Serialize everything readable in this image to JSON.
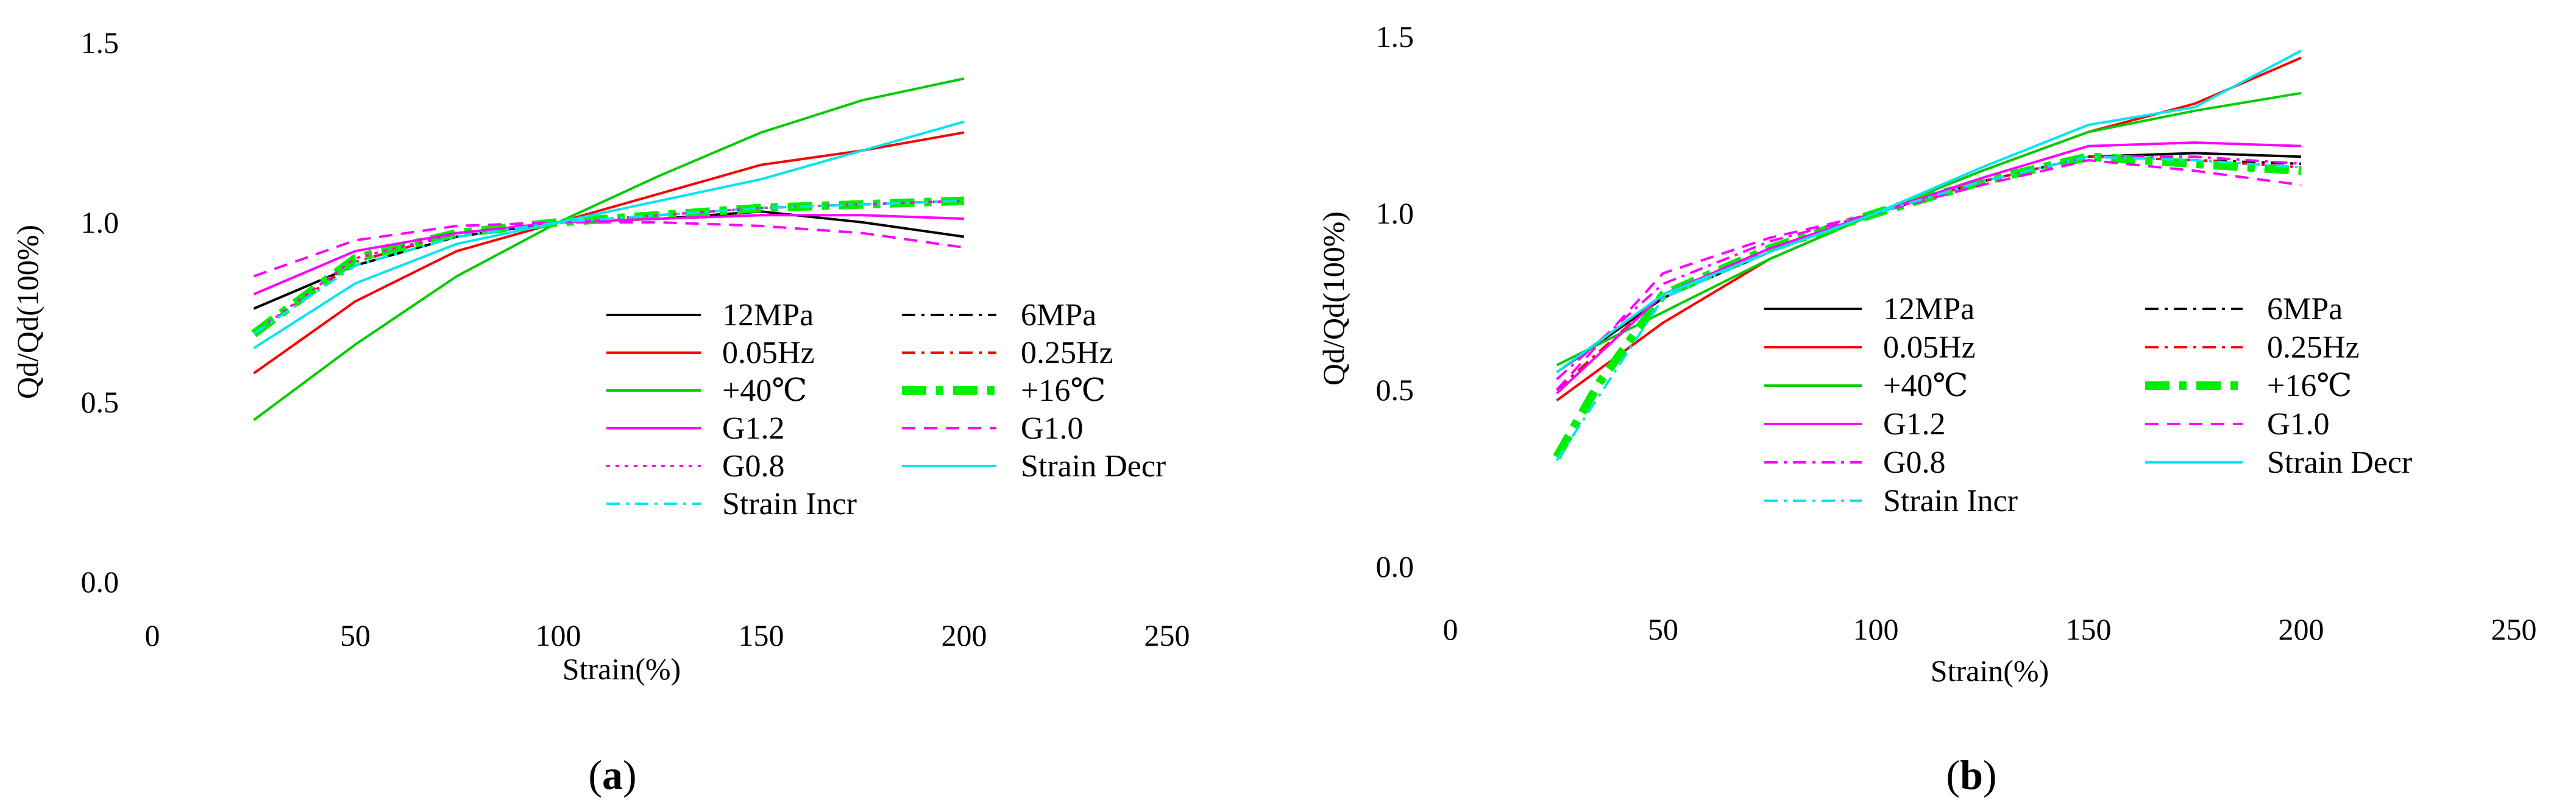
{
  "colors": {
    "black": "#000000",
    "red": "#ff0000",
    "green": "#00cc00",
    "magenta": "#ff00ff",
    "cyan": "#00e5ee"
  },
  "chart_data": [
    {
      "type": "line",
      "panel_label": "a",
      "xlabel": "Strain(%)",
      "ylabel": "Qd/Qd(100%)",
      "xlim": [
        0,
        250
      ],
      "ylim": [
        0,
        1.5
      ],
      "xticks": [
        "0",
        "50",
        "100",
        "150",
        "200",
        "250"
      ],
      "yticks": [
        "0.0",
        "0.5",
        "1.0",
        "1.5"
      ],
      "grid": false,
      "legend_position": "center-right",
      "series": [
        {
          "name": "12MPa",
          "color": "#000000",
          "dash": "solid",
          "width": 4,
          "x": [
            25,
            50,
            75,
            100,
            125,
            150,
            175,
            200
          ],
          "y": [
            0.76,
            0.88,
            0.96,
            1.0,
            1.01,
            1.03,
            1.0,
            0.96
          ]
        },
        {
          "name": "6MPa",
          "color": "#000000",
          "dash": "dashdot",
          "width": 4,
          "x": [
            25,
            50,
            75,
            100,
            125,
            150,
            175,
            200
          ],
          "y": [
            0.69,
            0.88,
            0.96,
            1.0,
            1.02,
            1.04,
            1.05,
            1.06
          ]
        },
        {
          "name": "0.05Hz",
          "color": "#ff0000",
          "dash": "solid",
          "width": 4,
          "x": [
            25,
            50,
            75,
            100,
            125,
            150,
            175,
            200
          ],
          "y": [
            0.58,
            0.78,
            0.92,
            1.0,
            1.08,
            1.16,
            1.2,
            1.25
          ]
        },
        {
          "name": "0.25Hz",
          "color": "#ff0000",
          "dash": "dashdot",
          "width": 4,
          "x": [
            25,
            50,
            75,
            100,
            125,
            150,
            175,
            200
          ],
          "y": [
            0.69,
            0.89,
            0.97,
            1.0,
            1.02,
            1.04,
            1.05,
            1.06
          ]
        },
        {
          "name": "+40℃",
          "color": "#00cc00",
          "dash": "solid",
          "width": 4,
          "x": [
            25,
            50,
            75,
            100,
            125,
            150,
            175,
            200
          ],
          "y": [
            0.45,
            0.66,
            0.85,
            1.0,
            1.13,
            1.25,
            1.34,
            1.4
          ]
        },
        {
          "name": "+16℃",
          "color": "#00ee00",
          "dash": "bigdash",
          "width": 14,
          "x": [
            25,
            50,
            75,
            100,
            125,
            150,
            175,
            200
          ],
          "y": [
            0.69,
            0.9,
            0.97,
            1.0,
            1.02,
            1.04,
            1.05,
            1.06
          ]
        },
        {
          "name": "G1.2",
          "color": "#ff00ff",
          "dash": "solid",
          "width": 4,
          "x": [
            25,
            50,
            75,
            100,
            125,
            150,
            175,
            200
          ],
          "y": [
            0.8,
            0.92,
            0.97,
            1.0,
            1.01,
            1.02,
            1.02,
            1.01
          ]
        },
        {
          "name": "G1.0",
          "color": "#ff00ff",
          "dash": "dash",
          "width": 4,
          "x": [
            25,
            50,
            75,
            100,
            125,
            150,
            175,
            200
          ],
          "y": [
            0.85,
            0.95,
            0.99,
            1.0,
            1.0,
            0.99,
            0.97,
            0.93
          ]
        },
        {
          "name": "G0.8",
          "color": "#ff00ff",
          "dash": "dot",
          "width": 4,
          "x": [
            25,
            50,
            75,
            100,
            125,
            150,
            175,
            200
          ],
          "y": [
            0.69,
            0.9,
            0.97,
            1.0,
            1.02,
            1.04,
            1.05,
            1.06
          ]
        },
        {
          "name": "Strain Decr",
          "color": "#00e5ee",
          "dash": "solid",
          "width": 4,
          "x": [
            25,
            50,
            75,
            100,
            125,
            150,
            175,
            200
          ],
          "y": [
            0.65,
            0.83,
            0.94,
            1.0,
            1.06,
            1.12,
            1.2,
            1.28
          ]
        },
        {
          "name": "Strain Incr",
          "color": "#00e5ee",
          "dash": "dashdot",
          "width": 4,
          "x": [
            25,
            50,
            75,
            100,
            125,
            150,
            175,
            200
          ],
          "y": [
            0.69,
            0.88,
            0.96,
            1.0,
            1.02,
            1.04,
            1.05,
            1.06
          ]
        }
      ]
    },
    {
      "type": "line",
      "panel_label": "b",
      "xlabel": "Strain(%)",
      "ylabel": "Qd/Qd(100%)",
      "xlim": [
        0,
        250
      ],
      "ylim": [
        0,
        1.5
      ],
      "xticks": [
        "0",
        "50",
        "100",
        "150",
        "200",
        "250"
      ],
      "yticks": [
        "0.0",
        "0.5",
        "1.0",
        "1.5"
      ],
      "grid": false,
      "legend_position": "lower-right",
      "series": [
        {
          "name": "12MPa",
          "color": "#000000",
          "dash": "solid",
          "width": 4,
          "x": [
            25,
            50,
            75,
            100,
            125,
            150,
            175,
            200
          ],
          "y": [
            0.55,
            0.76,
            0.89,
            1.0,
            1.09,
            1.16,
            1.17,
            1.16
          ]
        },
        {
          "name": "6MPa",
          "color": "#000000",
          "dash": "dashdot",
          "width": 4,
          "x": [
            25,
            50,
            75,
            100,
            125,
            150,
            175,
            200
          ],
          "y": [
            0.5,
            0.77,
            0.9,
            1.0,
            1.09,
            1.16,
            1.15,
            1.14
          ]
        },
        {
          "name": "0.05Hz",
          "color": "#ff0000",
          "dash": "solid",
          "width": 4,
          "x": [
            25,
            50,
            75,
            100,
            125,
            150,
            175,
            200
          ],
          "y": [
            0.47,
            0.69,
            0.87,
            1.0,
            1.12,
            1.23,
            1.31,
            1.44
          ]
        },
        {
          "name": "0.25Hz",
          "color": "#ff0000",
          "dash": "dashdot",
          "width": 4,
          "x": [
            25,
            50,
            75,
            100,
            125,
            150,
            175,
            200
          ],
          "y": [
            0.5,
            0.77,
            0.9,
            1.0,
            1.09,
            1.16,
            1.15,
            1.13
          ]
        },
        {
          "name": "+40℃",
          "color": "#00cc00",
          "dash": "solid",
          "width": 4,
          "x": [
            25,
            50,
            75,
            100,
            125,
            150,
            175,
            200
          ],
          "y": [
            0.57,
            0.72,
            0.87,
            1.0,
            1.12,
            1.23,
            1.29,
            1.34
          ]
        },
        {
          "name": "+16℃",
          "color": "#00ee00",
          "dash": "bigdash",
          "width": 14,
          "x": [
            25,
            35,
            50,
            75,
            100,
            125,
            150,
            175,
            200
          ],
          "y": [
            0.31,
            0.52,
            0.77,
            0.9,
            1.0,
            1.09,
            1.16,
            1.14,
            1.12
          ]
        },
        {
          "name": "G1.2",
          "color": "#ff00ff",
          "dash": "solid",
          "width": 4,
          "x": [
            25,
            50,
            75,
            100,
            125,
            150,
            175,
            200
          ],
          "y": [
            0.49,
            0.77,
            0.9,
            1.0,
            1.1,
            1.19,
            1.2,
            1.19
          ]
        },
        {
          "name": "G1.0",
          "color": "#ff00ff",
          "dash": "dash",
          "width": 4,
          "x": [
            25,
            50,
            75,
            100,
            125,
            150,
            175,
            200
          ],
          "y": [
            0.5,
            0.83,
            0.93,
            1.0,
            1.08,
            1.15,
            1.12,
            1.08
          ]
        },
        {
          "name": "G0.8",
          "color": "#ff00ff",
          "dash": "dashdot",
          "width": 4,
          "x": [
            25,
            50,
            75,
            100,
            125,
            150,
            175,
            200
          ],
          "y": [
            0.53,
            0.8,
            0.92,
            1.0,
            1.09,
            1.16,
            1.16,
            1.14
          ]
        },
        {
          "name": "Strain Decr",
          "color": "#00e5ee",
          "dash": "solid",
          "width": 4,
          "x": [
            25,
            50,
            75,
            100,
            125,
            150,
            175,
            200
          ],
          "y": [
            0.55,
            0.77,
            0.89,
            1.0,
            1.13,
            1.25,
            1.3,
            1.46
          ]
        },
        {
          "name": "Strain Incr",
          "color": "#00e5ee",
          "dash": "dashdot",
          "width": 4,
          "x": [
            25,
            50,
            75,
            100,
            125,
            150,
            175,
            200
          ],
          "y": [
            0.3,
            0.76,
            0.89,
            1.0,
            1.09,
            1.16,
            1.15,
            1.13
          ]
        }
      ]
    }
  ]
}
